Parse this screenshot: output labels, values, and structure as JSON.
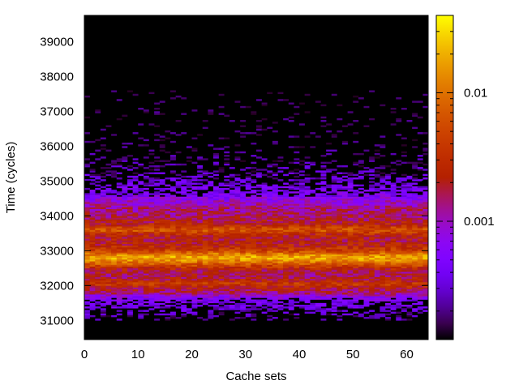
{
  "chart_data": {
    "type": "heatmap",
    "xlabel": "Cache sets",
    "ylabel": "Time (cycles)",
    "xlim": [
      0,
      64
    ],
    "ylim": [
      30450,
      39750
    ],
    "x_ticks": [
      0,
      10,
      20,
      30,
      40,
      50,
      60
    ],
    "y_ticks": [
      31000,
      32000,
      33000,
      34000,
      35000,
      36000,
      37000,
      38000,
      39000
    ],
    "colorbar": {
      "scale": "log",
      "range": [
        0.00012,
        0.04
      ],
      "labeled_ticks": [
        {
          "value": 0.001,
          "label": "0.001"
        },
        {
          "value": 0.01,
          "label": "0.01"
        }
      ],
      "palette": "black-purple-red-orange-yellow"
    },
    "x_bins": 64,
    "y_bin_size": 50,
    "profile": [
      {
        "time": 31100,
        "value": 0.00018
      },
      {
        "time": 31300,
        "value": 0.00035
      },
      {
        "time": 31500,
        "value": 0.0004
      },
      {
        "time": 31650,
        "value": 0.0006
      },
      {
        "time": 31800,
        "value": 0.0015
      },
      {
        "time": 31950,
        "value": 0.0022
      },
      {
        "time": 32050,
        "value": 0.0045
      },
      {
        "time": 32150,
        "value": 0.0022
      },
      {
        "time": 32300,
        "value": 0.0016
      },
      {
        "time": 32450,
        "value": 0.002
      },
      {
        "time": 32550,
        "value": 0.004
      },
      {
        "time": 32700,
        "value": 0.012
      },
      {
        "time": 32800,
        "value": 0.02
      },
      {
        "time": 32900,
        "value": 0.012
      },
      {
        "time": 33000,
        "value": 0.0045
      },
      {
        "time": 33150,
        "value": 0.0025
      },
      {
        "time": 33300,
        "value": 0.002
      },
      {
        "time": 33450,
        "value": 0.0025
      },
      {
        "time": 33600,
        "value": 0.007
      },
      {
        "time": 33750,
        "value": 0.0025
      },
      {
        "time": 33950,
        "value": 0.0016
      },
      {
        "time": 34200,
        "value": 0.0013
      },
      {
        "time": 34400,
        "value": 0.0009
      },
      {
        "time": 34600,
        "value": 0.0005
      },
      {
        "time": 34900,
        "value": 0.00035
      },
      {
        "time": 35200,
        "value": 0.00025
      },
      {
        "time": 35600,
        "value": 0.00018
      },
      {
        "time": 36000,
        "value": 0.00014
      },
      {
        "time": 36500,
        "value": 0.00013
      },
      {
        "time": 37300,
        "value": 0.00012
      }
    ]
  }
}
